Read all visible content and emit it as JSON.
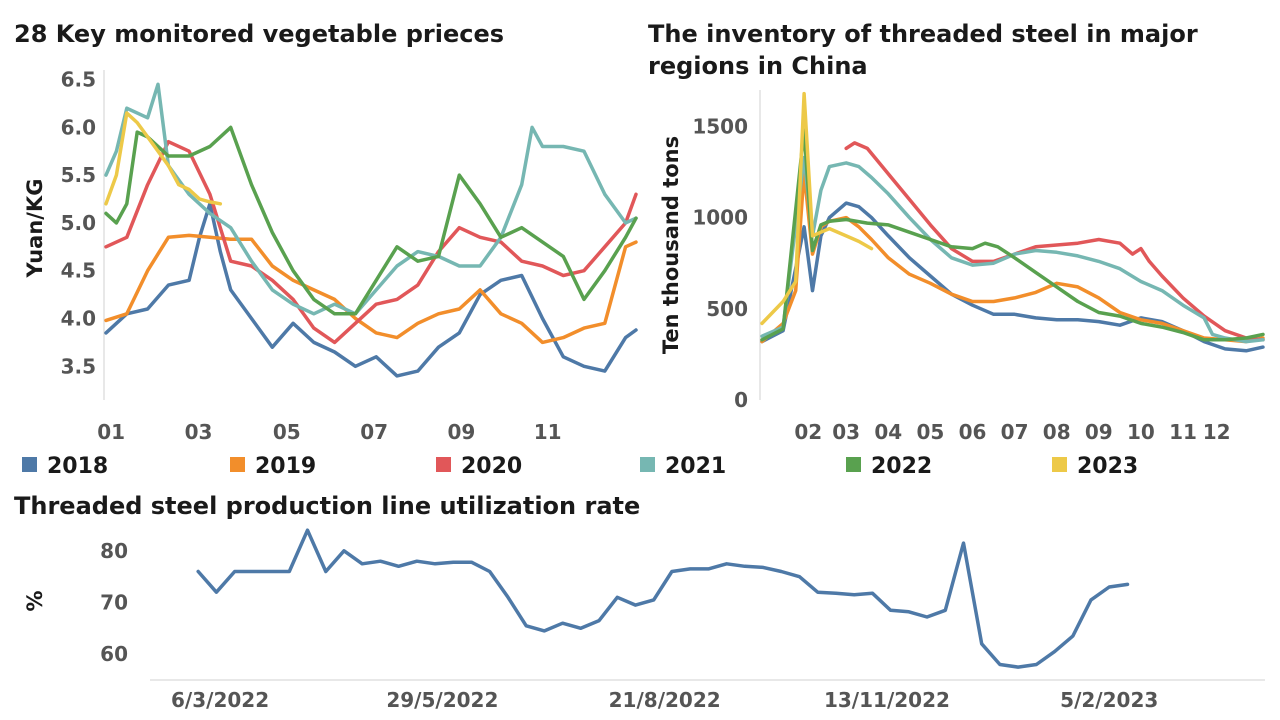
{
  "chart_data": [
    {
      "type": "line",
      "title": "28 Key monitored vegetable prieces",
      "ylabel": "Yuan/KG",
      "xlabel": "",
      "ylim": [
        3.2,
        6.6
      ],
      "yticks": [
        "6.5",
        "6.0",
        "5.5",
        "5.0",
        "4.5",
        "4.0",
        "3.5"
      ],
      "xticks": [
        "01",
        "03",
        "05",
        "07",
        "09",
        "11"
      ],
      "x_unit": "week",
      "series": [
        {
          "name": "2018",
          "color": "#4e79a7",
          "x": [
            1,
            3,
            5,
            7,
            9,
            10,
            11,
            12,
            13,
            15,
            17,
            19,
            21,
            23,
            25,
            27,
            29,
            31,
            33,
            35,
            37,
            39,
            41,
            43,
            45,
            47,
            49,
            51,
            52
          ],
          "y": [
            3.85,
            4.05,
            4.1,
            4.35,
            4.4,
            4.85,
            5.2,
            4.7,
            4.3,
            4.0,
            3.7,
            3.95,
            3.75,
            3.65,
            3.5,
            3.6,
            3.4,
            3.45,
            3.7,
            3.85,
            4.25,
            4.4,
            4.45,
            4.0,
            3.6,
            3.5,
            3.45,
            3.8,
            3.88
          ]
        },
        {
          "name": "2019",
          "color": "#f28e2b",
          "x": [
            1,
            3,
            5,
            7,
            9,
            11,
            13,
            15,
            17,
            19,
            21,
            23,
            25,
            27,
            29,
            31,
            33,
            35,
            37,
            39,
            41,
            43,
            45,
            47,
            49,
            51,
            52
          ],
          "y": [
            3.98,
            4.05,
            4.5,
            4.85,
            4.87,
            4.85,
            4.83,
            4.83,
            4.55,
            4.4,
            4.3,
            4.2,
            4.0,
            3.85,
            3.8,
            3.95,
            4.05,
            4.1,
            4.3,
            4.05,
            3.95,
            3.75,
            3.8,
            3.9,
            3.95,
            4.75,
            4.8
          ]
        },
        {
          "name": "2020",
          "color": "#e15759",
          "x": [
            1,
            3,
            5,
            7,
            9,
            11,
            13,
            15,
            17,
            19,
            21,
            23,
            25,
            27,
            29,
            31,
            33,
            35,
            37,
            39,
            41,
            43,
            45,
            47,
            49,
            51,
            52
          ],
          "y": [
            4.75,
            4.85,
            5.4,
            5.85,
            5.75,
            5.3,
            4.6,
            4.55,
            4.4,
            4.2,
            3.9,
            3.75,
            3.95,
            4.15,
            4.2,
            4.35,
            4.7,
            4.95,
            4.85,
            4.8,
            4.6,
            4.55,
            4.45,
            4.5,
            4.75,
            5.0,
            5.3
          ]
        },
        {
          "name": "2021",
          "color": "#76b7b2",
          "x": [
            1,
            2,
            3,
            5,
            6,
            7,
            9,
            11,
            13,
            15,
            17,
            19,
            21,
            23,
            25,
            27,
            29,
            31,
            33,
            35,
            37,
            39,
            41,
            42,
            43,
            45,
            47,
            49,
            51,
            52
          ],
          "y": [
            5.5,
            5.75,
            6.2,
            6.1,
            6.45,
            5.6,
            5.3,
            5.1,
            4.95,
            4.6,
            4.3,
            4.15,
            4.05,
            4.15,
            4.05,
            4.3,
            4.55,
            4.7,
            4.65,
            4.55,
            4.55,
            4.85,
            5.4,
            6.0,
            5.8,
            5.8,
            5.75,
            5.3,
            5.0,
            5.05
          ]
        },
        {
          "name": "2022",
          "color": "#59a14f",
          "x": [
            1,
            2,
            3,
            4,
            5,
            7,
            9,
            11,
            13,
            15,
            17,
            19,
            21,
            23,
            25,
            27,
            29,
            31,
            33,
            35,
            37,
            39,
            41,
            43,
            45,
            47,
            49,
            51,
            52
          ],
          "y": [
            5.1,
            5.0,
            5.2,
            5.95,
            5.9,
            5.7,
            5.7,
            5.8,
            6.0,
            5.4,
            4.9,
            4.5,
            4.2,
            4.05,
            4.05,
            4.4,
            4.75,
            4.6,
            4.65,
            5.5,
            5.2,
            4.85,
            4.95,
            4.8,
            4.65,
            4.2,
            4.5,
            4.85,
            5.05
          ]
        },
        {
          "name": "2023",
          "color": "#edc948",
          "x": [
            1,
            2,
            3,
            4,
            5,
            6,
            7,
            8,
            9,
            10,
            11,
            12
          ],
          "y": [
            5.2,
            5.5,
            6.15,
            6.05,
            5.9,
            5.75,
            5.6,
            5.4,
            5.35,
            5.25,
            5.22,
            5.2
          ]
        }
      ]
    },
    {
      "type": "line",
      "title": "The inventory of threaded steel in major regions in China",
      "ylabel": "Ten thousand tons",
      "xlabel": "",
      "ylim": [
        0,
        1700
      ],
      "yticks": [
        "1500",
        "1000",
        "500",
        "0"
      ],
      "xticks": [
        "02",
        "03",
        "04",
        "05",
        "06",
        "07",
        "08",
        "09",
        "10",
        "11",
        "12"
      ],
      "x_unit": "month",
      "series": [
        {
          "name": "2018",
          "color": "#4e79a7",
          "x": [
            1.0,
            1.5,
            2.0,
            2.2,
            2.4,
            2.6,
            3.0,
            3.3,
            3.6,
            4.0,
            4.5,
            5.0,
            5.5,
            6.0,
            6.5,
            7.0,
            7.5,
            8.0,
            8.5,
            9.0,
            9.5,
            10.0,
            10.5,
            11.0,
            11.5,
            12.0,
            12.5,
            12.9
          ],
          "y": [
            320,
            380,
            950,
            600,
            900,
            1000,
            1080,
            1060,
            1000,
            900,
            780,
            680,
            580,
            520,
            470,
            470,
            450,
            440,
            440,
            430,
            410,
            450,
            430,
            380,
            320,
            280,
            270,
            290
          ]
        },
        {
          "name": "2019",
          "color": "#f28e2b",
          "x": [
            1.0,
            1.5,
            1.8,
            2.0,
            2.2,
            2.4,
            2.6,
            3.0,
            3.3,
            3.6,
            4.0,
            4.5,
            5.0,
            5.5,
            6.0,
            6.5,
            7.0,
            7.5,
            8.0,
            8.5,
            9.0,
            9.5,
            10.0,
            10.5,
            11.0,
            11.5,
            12.0,
            12.5,
            12.9
          ],
          "y": [
            320,
            420,
            600,
            1250,
            800,
            950,
            980,
            1000,
            950,
            880,
            780,
            690,
            640,
            580,
            540,
            540,
            560,
            590,
            640,
            620,
            560,
            480,
            440,
            420,
            380,
            340,
            330,
            320,
            340
          ]
        },
        {
          "name": "2020",
          "color": "#e15759",
          "x": [
            3.0,
            3.2,
            3.5,
            4.0,
            4.5,
            5.0,
            5.5,
            6.0,
            6.5,
            7.0,
            7.5,
            8.0,
            8.5,
            9.0,
            9.5,
            9.8,
            10.0,
            10.2,
            10.5,
            11.0,
            11.5,
            12.0,
            12.5,
            12.9
          ],
          "y": [
            1380,
            1410,
            1380,
            1240,
            1100,
            960,
            830,
            760,
            760,
            800,
            840,
            850,
            860,
            880,
            860,
            800,
            830,
            760,
            680,
            560,
            460,
            380,
            340,
            330
          ]
        },
        {
          "name": "2021",
          "color": "#76b7b2",
          "x": [
            1.0,
            1.5,
            2.0,
            2.2,
            2.4,
            2.6,
            3.0,
            3.3,
            3.6,
            4.0,
            4.5,
            5.0,
            5.5,
            6.0,
            6.5,
            7.0,
            7.5,
            8.0,
            8.5,
            9.0,
            9.5,
            10.0,
            10.5,
            11.0,
            11.5,
            11.7,
            12.0,
            12.5,
            12.9
          ],
          "y": [
            350,
            400,
            1330,
            900,
            1150,
            1280,
            1300,
            1280,
            1220,
            1130,
            1000,
            880,
            780,
            740,
            750,
            800,
            820,
            810,
            790,
            760,
            720,
            650,
            600,
            520,
            450,
            360,
            340,
            320,
            330
          ]
        },
        {
          "name": "2022",
          "color": "#59a14f",
          "x": [
            1.0,
            1.5,
            2.0,
            2.2,
            2.4,
            2.6,
            3.0,
            3.5,
            4.0,
            4.5,
            5.0,
            5.5,
            6.0,
            6.3,
            6.6,
            7.0,
            7.5,
            8.0,
            8.5,
            9.0,
            9.5,
            10.0,
            10.5,
            11.0,
            11.5,
            12.0,
            12.5,
            12.9
          ],
          "y": [
            330,
            390,
            1480,
            820,
            960,
            980,
            990,
            970,
            960,
            920,
            880,
            840,
            830,
            860,
            840,
            780,
            700,
            620,
            540,
            480,
            460,
            420,
            400,
            370,
            330,
            330,
            340,
            360
          ]
        },
        {
          "name": "2023",
          "color": "#edc948",
          "x": [
            1.0,
            1.5,
            1.8,
            2.0,
            2.2,
            2.4,
            2.6,
            3.0,
            3.3,
            3.6
          ],
          "y": [
            420,
            540,
            650,
            1680,
            900,
            920,
            940,
            900,
            870,
            830
          ]
        }
      ]
    },
    {
      "type": "line",
      "title": "Threaded steel production line utilization rate",
      "ylabel": "%",
      "xlabel": "",
      "ylim": [
        55,
        85
      ],
      "yticks": [
        "80",
        "70",
        "60"
      ],
      "xticks": [
        "6/3/2022",
        "29/5/2022",
        "21/8/2022",
        "13/11/2022",
        "5/2/2023"
      ],
      "x_unit": "week",
      "series": [
        {
          "name": "",
          "color": "#4e79a7",
          "x": [
            -1,
            0,
            1,
            2,
            3,
            4,
            5,
            6,
            7,
            8,
            9,
            10,
            11,
            12,
            13,
            14,
            15,
            16,
            17,
            18,
            19,
            20,
            21,
            22,
            23,
            24,
            25,
            26,
            27,
            28,
            29,
            30,
            31,
            32,
            33,
            34,
            35,
            36,
            37,
            38,
            39,
            40,
            41,
            42,
            43,
            44,
            45,
            46,
            47,
            48,
            49,
            50
          ],
          "y": [
            76,
            72,
            76,
            76,
            76,
            76,
            84,
            76,
            80,
            77.5,
            78,
            77,
            78,
            77.5,
            77.8,
            77.8,
            76,
            71,
            65.5,
            64.5,
            66,
            65,
            66.5,
            71,
            69.5,
            70.5,
            76,
            76.5,
            76.5,
            77.5,
            77,
            76.8,
            76,
            75,
            72,
            71.8,
            71.5,
            71.8,
            68.5,
            68.2,
            67.2,
            68.5,
            81.5,
            62,
            58,
            57.5,
            58,
            60.5,
            63.5,
            70.5,
            73,
            73.5
          ]
        }
      ]
    }
  ],
  "legend": [
    {
      "label": "2018",
      "color": "#4e79a7"
    },
    {
      "label": "2019",
      "color": "#f28e2b"
    },
    {
      "label": "2020",
      "color": "#e15759"
    },
    {
      "label": "2021",
      "color": "#76b7b2"
    },
    {
      "label": "2022",
      "color": "#59a14f"
    },
    {
      "label": "2023",
      "color": "#edc948"
    }
  ]
}
